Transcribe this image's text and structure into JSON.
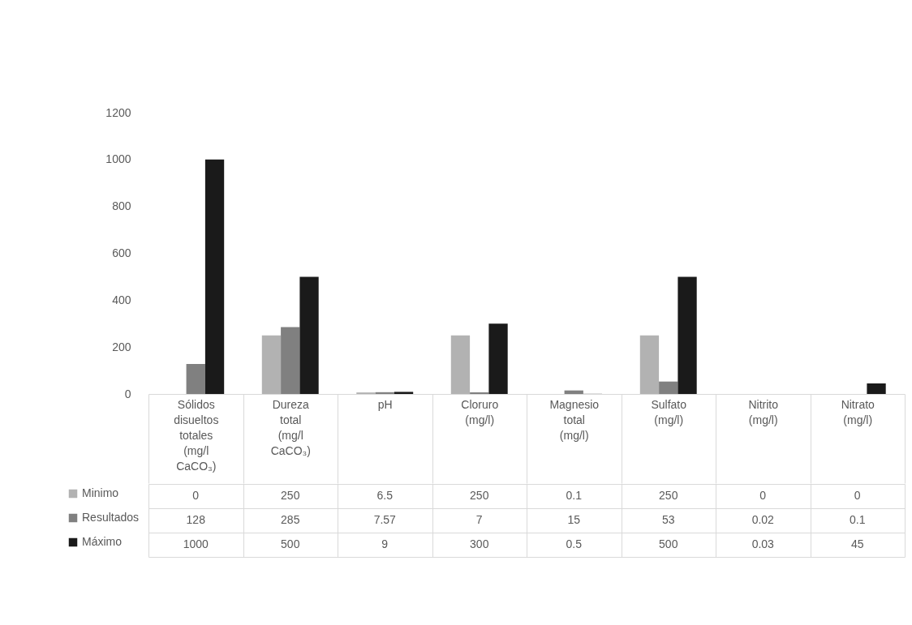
{
  "chart_data": {
    "type": "bar",
    "categories": [
      "Sólidos disueltos totales (mg/l CaCO₃)",
      "Dureza total (mg/l CaCO₃)",
      "pH",
      "Cloruro (mg/l)",
      "Magnesio total (mg/l)",
      "Sulfato (mg/l)",
      "Nitrito (mg/l)",
      "Nitrato (mg/l)"
    ],
    "series": [
      {
        "name": "Minimo",
        "color": "#b2b2b2",
        "values": [
          0,
          250,
          6.5,
          250,
          0.1,
          250,
          0,
          0
        ],
        "value_labels": [
          "0",
          "250",
          "6.5",
          "250",
          "0.1",
          "250",
          "0",
          "0"
        ]
      },
      {
        "name": "Resultados",
        "color": "#808080",
        "values": [
          128,
          285,
          7.57,
          7,
          15,
          53,
          0.02,
          0.1
        ],
        "value_labels": [
          "128",
          "285",
          "7.57",
          "7",
          "15",
          "53",
          "0.02",
          "0.1"
        ]
      },
      {
        "name": "Máximo",
        "color": "#1a1a1a",
        "values": [
          1000,
          500,
          9,
          300,
          0.5,
          500,
          0.03,
          45
        ],
        "value_labels": [
          "1000",
          "500",
          "9",
          "300",
          "0.5",
          "500",
          "0.03",
          "45"
        ]
      }
    ],
    "ylim": [
      0,
      1200
    ],
    "yticks": [
      0,
      200,
      400,
      600,
      800,
      1000,
      1200
    ],
    "grid": false,
    "legend": "bottom left"
  }
}
